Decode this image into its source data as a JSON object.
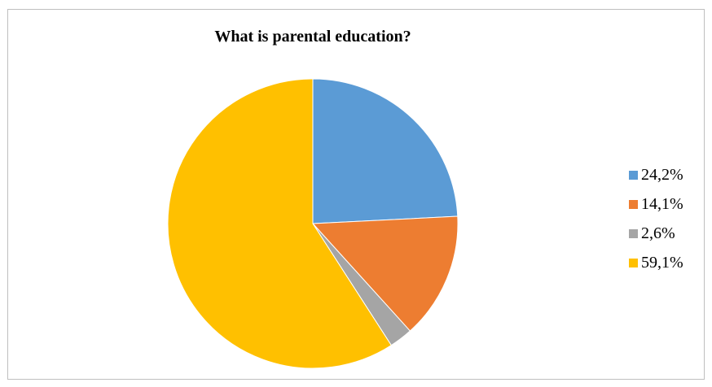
{
  "chart_data": {
    "type": "pie",
    "title": "What is parental education?",
    "start_angle_deg": 0,
    "direction": "clockwise",
    "legend_position": "right",
    "slices": [
      {
        "label": "24,2%",
        "value": 24.2,
        "color": "#5b9bd5"
      },
      {
        "label": "14,1%",
        "value": 14.1,
        "color": "#ed7d31"
      },
      {
        "label": "2,6%",
        "value": 2.6,
        "color": "#a5a5a5"
      },
      {
        "label": "59,1%",
        "value": 59.1,
        "color": "#ffc000"
      }
    ]
  }
}
